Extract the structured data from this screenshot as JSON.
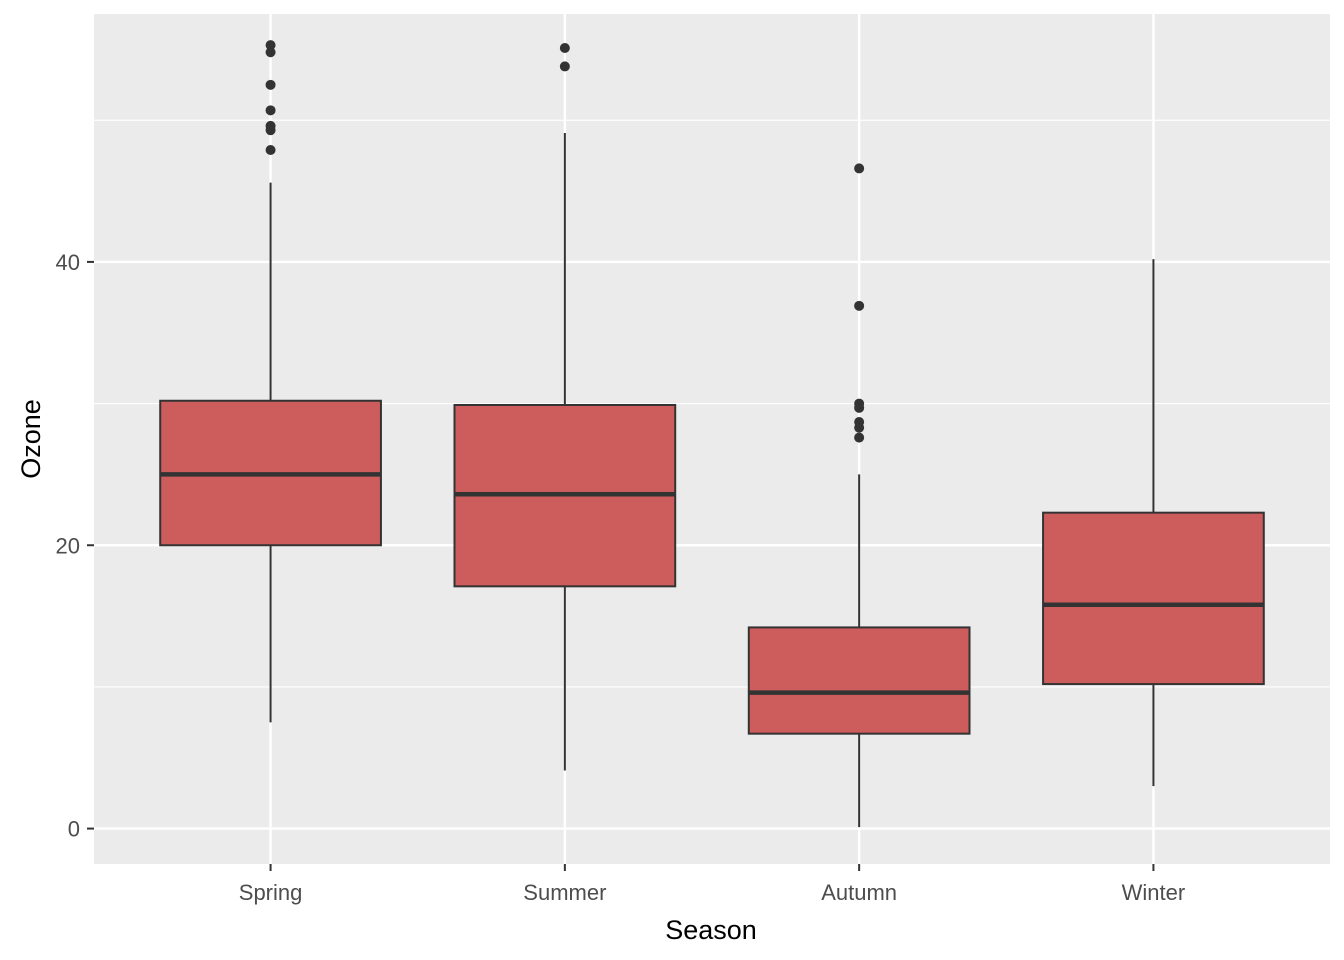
{
  "chart_data": {
    "type": "boxplot",
    "title": "",
    "xlabel": "Season",
    "ylabel": "Ozone",
    "categories": [
      "Spring",
      "Summer",
      "Autumn",
      "Winter"
    ],
    "ylim": [
      -2.5,
      57.5
    ],
    "y_ticks": [
      0,
      20,
      40
    ],
    "y_tick_labels": [
      "0",
      "20",
      "40"
    ],
    "grid": true,
    "legend": "none",
    "colors": {
      "panel_bg": "#ebebeb",
      "grid": "#ffffff",
      "box_fill": "#cd5c5c",
      "box_line": "#333333"
    },
    "boxes": [
      {
        "category": "Spring",
        "whisker_low": 7.5,
        "q1": 20.0,
        "median": 25.0,
        "q3": 30.2,
        "whisker_high": 45.6,
        "outliers": [
          47.9,
          49.3,
          49.6,
          50.7,
          52.5,
          54.8,
          55.3
        ]
      },
      {
        "category": "Summer",
        "whisker_low": 4.1,
        "q1": 17.1,
        "median": 23.6,
        "q3": 29.9,
        "whisker_high": 49.1,
        "outliers": [
          53.8,
          55.1
        ]
      },
      {
        "category": "Autumn",
        "whisker_low": 0.1,
        "q1": 6.7,
        "median": 9.6,
        "q3": 14.2,
        "whisker_high": 25.0,
        "outliers": [
          27.6,
          28.3,
          28.7,
          29.7,
          30.0,
          36.9,
          46.6
        ]
      },
      {
        "category": "Winter",
        "whisker_low": 3.0,
        "q1": 10.2,
        "median": 15.8,
        "q3": 22.3,
        "whisker_high": 40.2,
        "outliers": []
      }
    ]
  }
}
